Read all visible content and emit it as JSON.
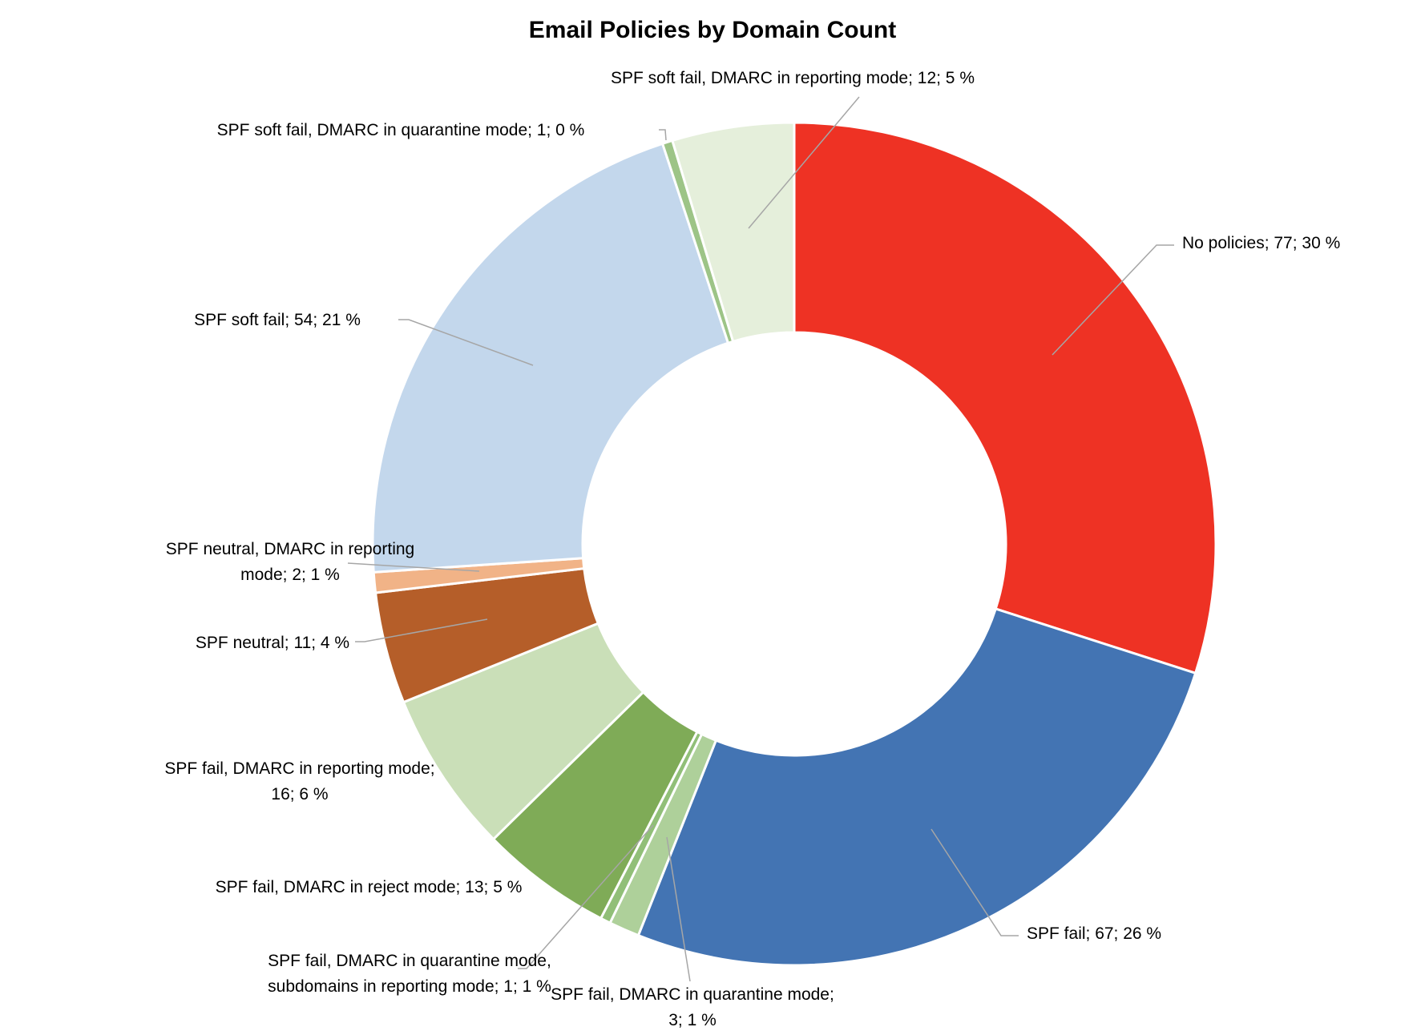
{
  "chart_data": {
    "type": "pie",
    "variant": "doughnut",
    "title": "Email Policies by Domain Count",
    "legend": "none",
    "slices": [
      {
        "label": "No policies",
        "value": 77,
        "percent_label": "30 %",
        "color": "#ee3224",
        "label_text": "No policies; 77; 30 %"
      },
      {
        "label": "SPF fail",
        "value": 67,
        "percent_label": "26 %",
        "color": "#4374b3",
        "label_text": "SPF fail; 67; 26 %"
      },
      {
        "label": "SPF fail, DMARC in quarantine mode",
        "value": 3,
        "percent_label": "1 %",
        "color": "#aed09a",
        "label_text": "SPF fail, DMARC in quarantine mode; 3; 1 %"
      },
      {
        "label": "SPF fail, DMARC in quarantine mode, subdomains in reporting mode",
        "value": 1,
        "percent_label": "1 %",
        "color": "#91bf78",
        "label_text": "SPF fail, DMARC in quarantine mode, subdomains in reporting mode; 1; 1 %"
      },
      {
        "label": "SPF fail, DMARC in reject mode",
        "value": 13,
        "percent_label": "5 %",
        "color": "#7fab57",
        "label_text": "SPF fail, DMARC in reject mode; 13; 5 %"
      },
      {
        "label": "SPF fail, DMARC in reporting mode",
        "value": 16,
        "percent_label": "6 %",
        "color": "#cadfb8",
        "label_text": "SPF fail, DMARC in reporting mode; 16; 6 %"
      },
      {
        "label": "SPF neutral",
        "value": 11,
        "percent_label": "4 %",
        "color": "#b55e29",
        "label_text": "SPF neutral; 11; 4 %"
      },
      {
        "label": "SPF neutral, DMARC in reporting mode",
        "value": 2,
        "percent_label": "1 %",
        "color": "#f1b387",
        "label_text": "SPF neutral, DMARC in reporting mode; 2; 1 %"
      },
      {
        "label": "SPF soft fail",
        "value": 54,
        "percent_label": "21 %",
        "color": "#c3d7ec",
        "label_text": "SPF soft fail; 54; 21 %"
      },
      {
        "label": "SPF soft fail, DMARC in quarantine mode",
        "value": 1,
        "percent_label": "0 %",
        "color": "#9dc487",
        "label_text": "SPF soft fail, DMARC in quarantine mode; 1; 0 %"
      },
      {
        "label": "SPF soft fail, DMARC in reporting mode",
        "value": 12,
        "percent_label": "5 %",
        "color": "#e5efdb",
        "label_text": "SPF soft fail, DMARC in reporting mode; 12; 5 %"
      }
    ],
    "data_labels": [
      {
        "lines": [
          "No policies; 77; 30 %"
        ]
      },
      {
        "lines": [
          "SPF fail; 67; 26 %"
        ]
      },
      {
        "lines": [
          "SPF fail, DMARC in quarantine mode;",
          "3; 1 %"
        ]
      },
      {
        "lines": [
          "SPF fail, DMARC in quarantine mode,",
          "subdomains in reporting mode; 1; 1 %"
        ]
      },
      {
        "lines": [
          "SPF fail, DMARC in reject mode; 13; 5 %"
        ]
      },
      {
        "lines": [
          "SPF fail, DMARC in reporting mode;",
          "16; 6 %"
        ]
      },
      {
        "lines": [
          "SPF neutral; 11; 4 %"
        ]
      },
      {
        "lines": [
          "SPF neutral, DMARC in reporting",
          "mode; 2; 1 %"
        ]
      },
      {
        "lines": [
          "SPF soft fail; 54; 21 %"
        ]
      },
      {
        "lines": [
          "SPF soft fail, DMARC in quarantine mode; 1; 0 %"
        ]
      },
      {
        "lines": [
          "SPF soft fail, DMARC in reporting mode; 12; 5 %"
        ]
      }
    ]
  }
}
